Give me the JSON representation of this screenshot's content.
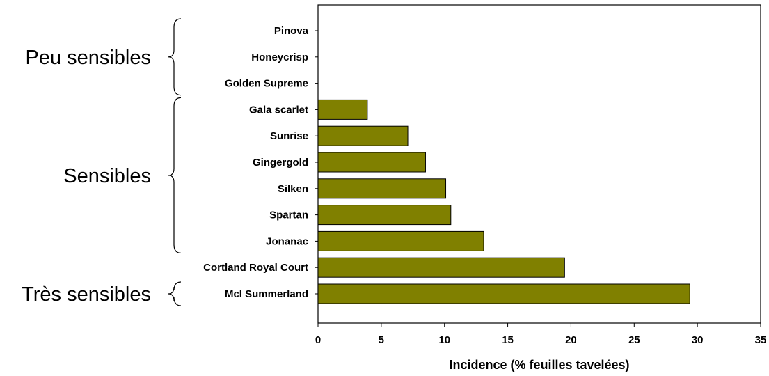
{
  "chart_data": {
    "type": "bar",
    "orientation": "horizontal",
    "categories": [
      "Pinova",
      "Honeycrisp",
      "Golden Supreme",
      "Gala scarlet",
      "Sunrise",
      "Gingergold",
      "Silken",
      "Spartan",
      "Jonanac",
      "Cortland Royal Court",
      "Mcl Summerland"
    ],
    "values": [
      0,
      0,
      0,
      3.9,
      7.1,
      8.5,
      10.1,
      10.5,
      13.1,
      19.5,
      29.4
    ],
    "xlabel": "Incidence (% feuilles tavelées)",
    "ylabel": "",
    "xlim": [
      0,
      35
    ],
    "xticks": [
      0,
      5,
      10,
      15,
      20,
      25,
      30,
      35
    ],
    "bar_color": "#808000",
    "grid": false,
    "groups": [
      {
        "label": "Peu sensibles",
        "from": "Pinova",
        "to": "Golden Supreme"
      },
      {
        "label": "Sensibles",
        "from": "Gala scarlet",
        "to": "Jonanac"
      },
      {
        "label": "Très sensibles",
        "from": "Mcl Summerland",
        "to": "Mcl Summerland"
      }
    ]
  }
}
